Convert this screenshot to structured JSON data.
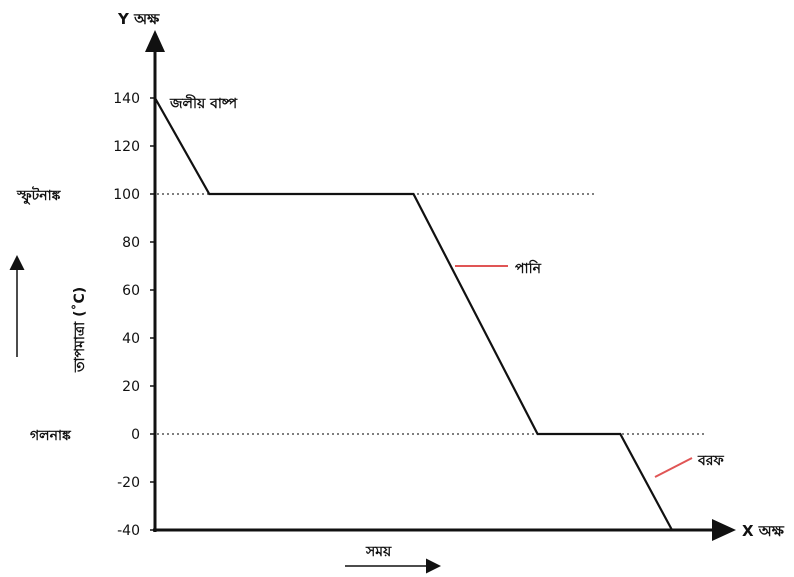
{
  "chart_data": {
    "type": "line",
    "y_axis_title": "Y অক্ষ",
    "x_axis_title": "X অক্ষ",
    "ylabel": "তাপমাত্রা (˚C)",
    "xlabel": "সময়",
    "ylim": [
      -40,
      140
    ],
    "yticks": [
      140,
      120,
      100,
      80,
      60,
      40,
      20,
      0,
      -20,
      -40
    ],
    "ytick_labels": [
      "140",
      "120",
      "100",
      "80",
      "60",
      "40",
      "20",
      "0",
      "-20",
      "-40"
    ],
    "points": [
      {
        "t": 0,
        "y": 140
      },
      {
        "t": 0.105,
        "y": 100
      },
      {
        "t": 0.5,
        "y": 100
      },
      {
        "t": 0.74,
        "y": 0
      },
      {
        "t": 0.9,
        "y": 0
      },
      {
        "t": 1.0,
        "y": -40
      }
    ],
    "reference_lines": [
      {
        "y": 100,
        "label": "স্ফুটনাঙ্ক"
      },
      {
        "y": 0,
        "label": "গলনাঙ্ক"
      }
    ],
    "annotations": {
      "vapor": "জলীয় বাষ্প",
      "water": "পানি",
      "ice": "বরফ"
    },
    "colors": {
      "line": "#111111",
      "annotation_marker": "#e05555",
      "reference": "#333333"
    }
  }
}
